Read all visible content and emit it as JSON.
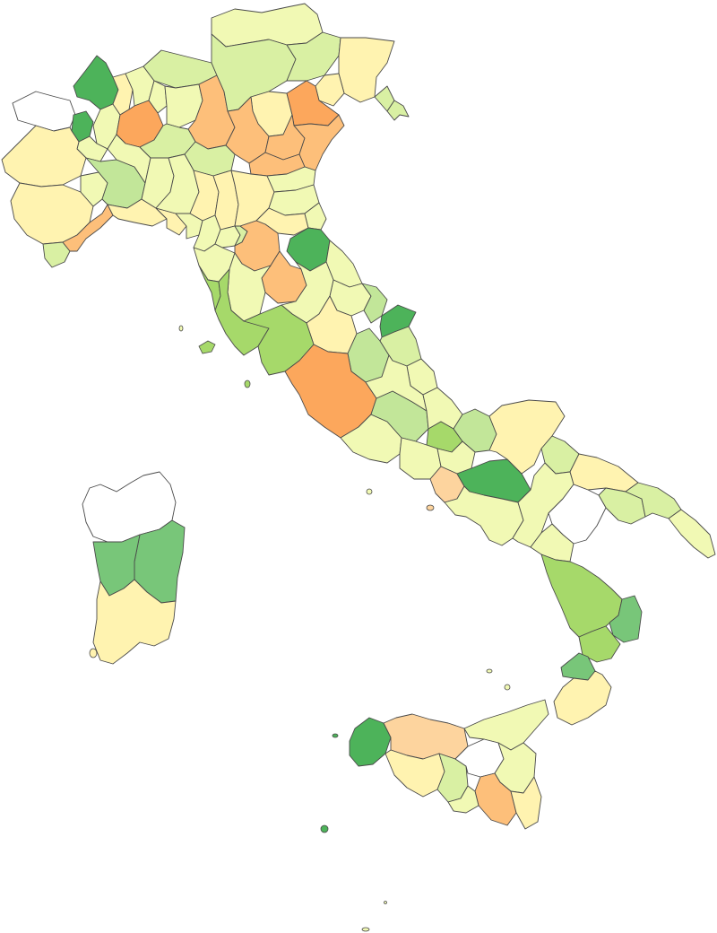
{
  "map": {
    "type": "choropleth",
    "subject": "provinces",
    "palette": {
      "none": "#ffffff",
      "c1": "#fdd49e",
      "c2": "#fdbf7a",
      "c3": "#fca75c",
      "c4": "#fff3b0",
      "c5": "#f1f9b4",
      "c6": "#d9f0a3",
      "c7": "#c2e699",
      "c8": "#a6d96a",
      "c9": "#78c679",
      "c10": "#4db35a"
    },
    "stroke_color": "#4a4a4a"
  }
}
